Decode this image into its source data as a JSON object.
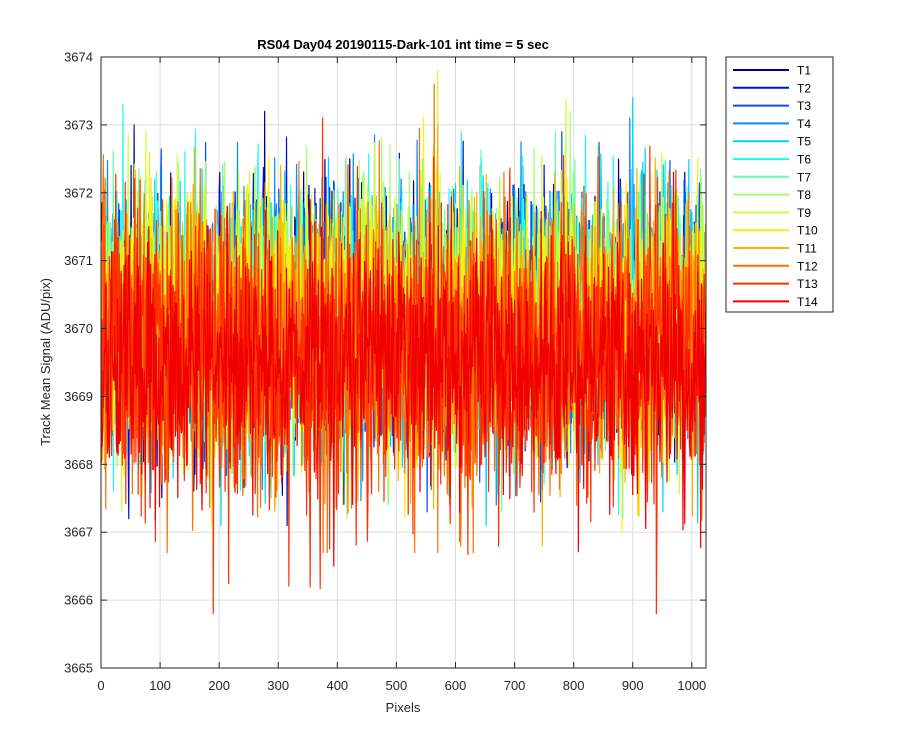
{
  "chart_data": {
    "type": "line",
    "title": "RS04 Day04 20190115-Dark-101 int time = 5 sec",
    "xlabel": "Pixels",
    "ylabel": "Track Mean Signal (ADU/pix)",
    "xlim": [
      0,
      1024
    ],
    "ylim": [
      3665,
      3674
    ],
    "x_ticks": [
      0,
      100,
      200,
      300,
      400,
      500,
      600,
      700,
      800,
      900,
      1000
    ],
    "y_ticks": [
      3665,
      3666,
      3667,
      3668,
      3669,
      3670,
      3671,
      3672,
      3673,
      3674
    ],
    "grid": true,
    "legend_position": "outside-top-right",
    "series": [
      {
        "name": "T1",
        "color": "#00008F",
        "mean": 3670.1,
        "min": 3667.1,
        "max": 3673.2
      },
      {
        "name": "T2",
        "color": "#0012C8",
        "mean": 3670.1,
        "min": 3667.2,
        "max": 3673.0
      },
      {
        "name": "T3",
        "color": "#0050FF",
        "mean": 3670.1,
        "min": 3667.3,
        "max": 3672.9
      },
      {
        "name": "T4",
        "color": "#0090FF",
        "mean": 3670.2,
        "min": 3667.4,
        "max": 3673.1
      },
      {
        "name": "T5",
        "color": "#00D0FF",
        "mean": 3670.2,
        "min": 3667.1,
        "max": 3673.4
      },
      {
        "name": "T6",
        "color": "#20FFEF",
        "mean": 3670.2,
        "min": 3667.2,
        "max": 3673.3
      },
      {
        "name": "T7",
        "color": "#60FFAF",
        "mean": 3670.2,
        "min": 3667.3,
        "max": 3672.9
      },
      {
        "name": "T8",
        "color": "#9FFF70",
        "mean": 3670.2,
        "min": 3667.2,
        "max": 3673.2
      },
      {
        "name": "T9",
        "color": "#CFFF30",
        "mean": 3670.1,
        "min": 3667.1,
        "max": 3673.8
      },
      {
        "name": "T10",
        "color": "#FFEF00",
        "mean": 3670.0,
        "min": 3667.0,
        "max": 3673.1
      },
      {
        "name": "T11",
        "color": "#FFB000",
        "mean": 3669.8,
        "min": 3666.8,
        "max": 3673.0
      },
      {
        "name": "T12",
        "color": "#FF7000",
        "mean": 3669.7,
        "min": 3666.7,
        "max": 3673.6
      },
      {
        "name": "T13",
        "color": "#FF3000",
        "mean": 3669.6,
        "min": 3665.8,
        "max": 3673.1
      },
      {
        "name": "T14",
        "color": "#F00000",
        "mean": 3669.5,
        "min": 3666.5,
        "max": 3672.3
      }
    ]
  }
}
